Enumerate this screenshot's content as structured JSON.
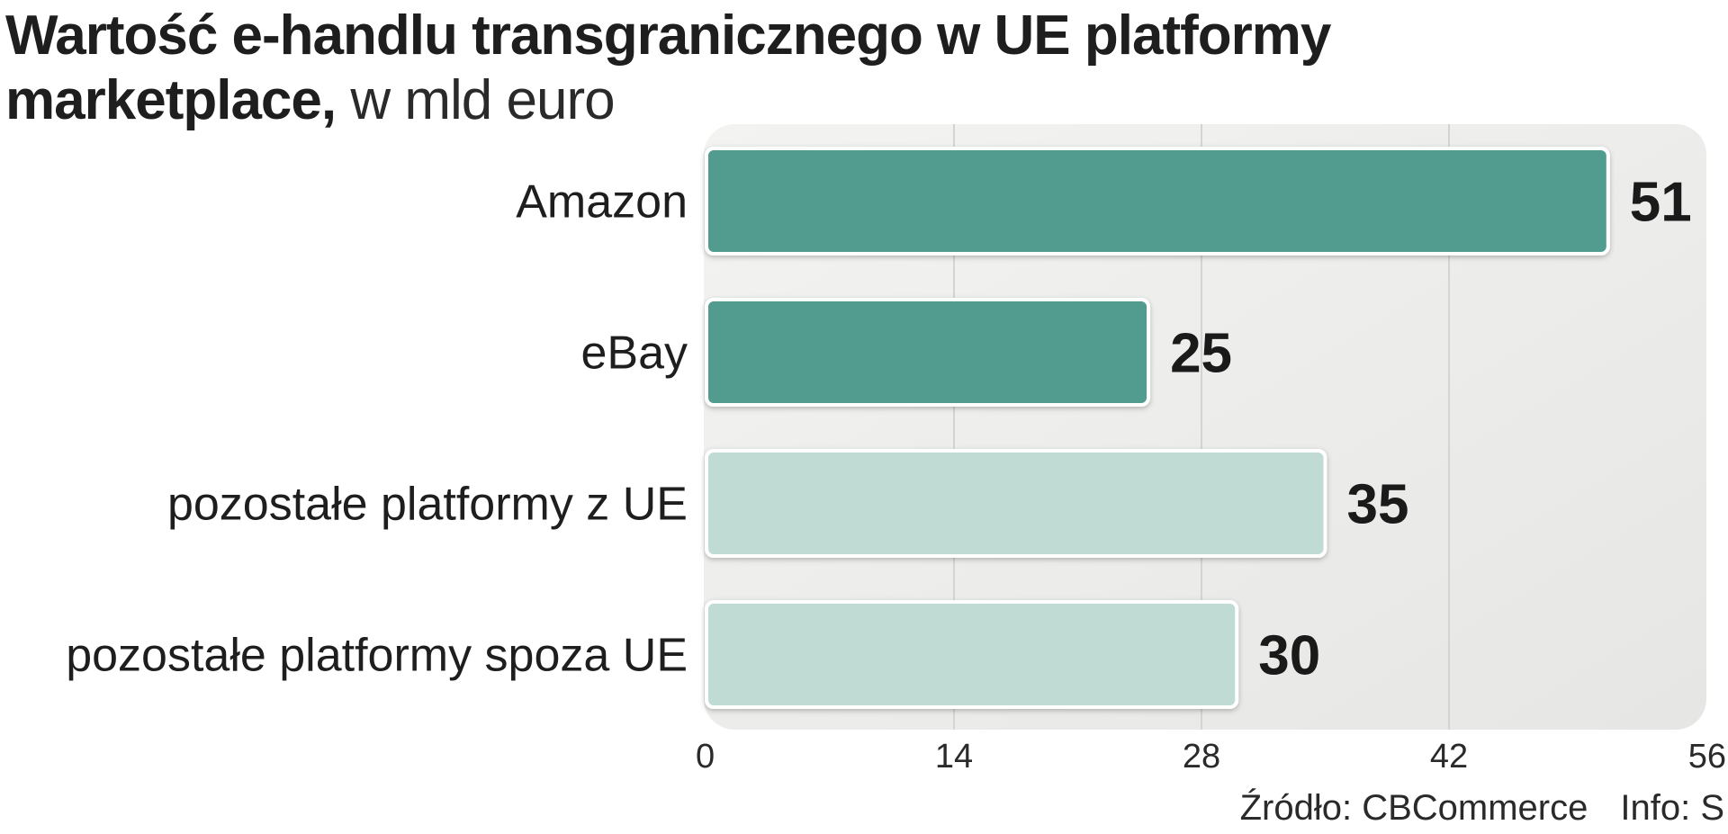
{
  "title": {
    "main": "Wartość e-handlu transgranicznego w UE platformy marketplace,",
    "unit": " w mld euro"
  },
  "footer": {
    "source": "Źródło: CBCommerce",
    "info": "Info: S"
  },
  "colors": {
    "dark_bar": "#519c8f",
    "light_bar": "#c0dbd4",
    "panel": "#eeeeec"
  },
  "chart_data": {
    "type": "bar",
    "orientation": "horizontal",
    "categories": [
      "Amazon",
      "eBay",
      "pozostałe platformy z UE",
      "pozostałe platformy spoza UE"
    ],
    "values": [
      51,
      25,
      35,
      30
    ],
    "value_labels": [
      "51",
      "25",
      "35",
      "30"
    ],
    "bar_shades": [
      "dark",
      "dark",
      "light",
      "light"
    ],
    "xlim": [
      0,
      56
    ],
    "xticks": [
      0,
      14,
      28,
      42,
      56
    ],
    "xtick_labels": [
      "0",
      "14",
      "28",
      "42",
      "56"
    ],
    "grid": true
  }
}
